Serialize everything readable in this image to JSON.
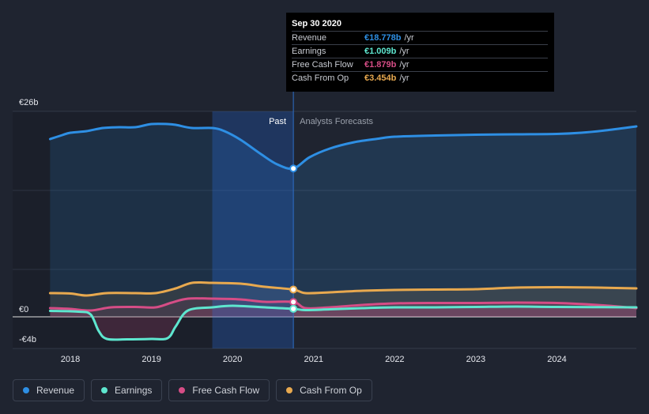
{
  "tooltip": {
    "date": "Sep 30 2020",
    "rows": [
      {
        "label": "Revenue",
        "value": "€18.778b",
        "unit": "/yr",
        "color": "#2e8fe4"
      },
      {
        "label": "Earnings",
        "value": "€1.009b",
        "unit": "/yr",
        "color": "#5ee6cf"
      },
      {
        "label": "Free Cash Flow",
        "value": "€1.879b",
        "unit": "/yr",
        "color": "#d64d86"
      },
      {
        "label": "Cash From Op",
        "value": "€3.454b",
        "unit": "/yr",
        "color": "#e8a94f"
      }
    ]
  },
  "legend": [
    {
      "label": "Revenue",
      "color": "#2e8fe4"
    },
    {
      "label": "Earnings",
      "color": "#5ee6cf"
    },
    {
      "label": "Free Cash Flow",
      "color": "#d64d86"
    },
    {
      "label": "Cash From Op",
      "color": "#e8a94f"
    }
  ],
  "chart_data": {
    "type": "line",
    "ylim": [
      -4,
      26
    ],
    "y_tick_labels": [
      {
        "value": 26,
        "label": "€26b"
      },
      {
        "value": 0,
        "label": "€0"
      },
      {
        "value": -4,
        "label": "-€4b"
      }
    ],
    "xlim": [
      2017.6,
      2024.98
    ],
    "x_ticks": [
      2018,
      2019,
      2020,
      2021,
      2022,
      2023,
      2024
    ],
    "x_tick_labels": [
      "2018",
      "2019",
      "2020",
      "2021",
      "2022",
      "2023",
      "2024"
    ],
    "divider_x": 2020.75,
    "shaded_past_start": 2019.75,
    "past_label": "Past",
    "forecast_label": "Analysts Forecasts",
    "series": [
      {
        "name": "Revenue",
        "color": "#2e8fe4",
        "points": [
          [
            2017.75,
            22.5
          ],
          [
            2017.9,
            23
          ],
          [
            2018.0,
            23.3
          ],
          [
            2018.2,
            23.5
          ],
          [
            2018.4,
            23.9
          ],
          [
            2018.6,
            24.0
          ],
          [
            2018.8,
            24.0
          ],
          [
            2019.0,
            24.4
          ],
          [
            2019.2,
            24.4
          ],
          [
            2019.3,
            24.3
          ],
          [
            2019.5,
            23.9
          ],
          [
            2019.75,
            23.9
          ],
          [
            2019.9,
            23.5
          ],
          [
            2020.1,
            22.4
          ],
          [
            2020.35,
            20.6
          ],
          [
            2020.55,
            19.3
          ],
          [
            2020.75,
            18.778
          ],
          [
            2020.95,
            20.2
          ],
          [
            2021.2,
            21.3
          ],
          [
            2021.5,
            22.1
          ],
          [
            2021.8,
            22.55
          ],
          [
            2022.0,
            22.8
          ],
          [
            2022.5,
            22.95
          ],
          [
            2023.0,
            23.05
          ],
          [
            2023.5,
            23.1
          ],
          [
            2024.0,
            23.15
          ],
          [
            2024.3,
            23.3
          ],
          [
            2024.6,
            23.6
          ],
          [
            2024.98,
            24.1
          ]
        ]
      },
      {
        "name": "Cash From Op",
        "color": "#e8a94f",
        "points": [
          [
            2017.75,
            3.0
          ],
          [
            2018.0,
            2.95
          ],
          [
            2018.2,
            2.7
          ],
          [
            2018.45,
            3.0
          ],
          [
            2018.8,
            3.0
          ],
          [
            2019.05,
            3.0
          ],
          [
            2019.3,
            3.6
          ],
          [
            2019.5,
            4.3
          ],
          [
            2019.75,
            4.3
          ],
          [
            2020.1,
            4.2
          ],
          [
            2020.4,
            3.8
          ],
          [
            2020.75,
            3.454
          ],
          [
            2020.9,
            3.0
          ],
          [
            2021.2,
            3.1
          ],
          [
            2021.6,
            3.3
          ],
          [
            2022.0,
            3.4
          ],
          [
            2022.5,
            3.45
          ],
          [
            2023.0,
            3.5
          ],
          [
            2023.5,
            3.7
          ],
          [
            2024.0,
            3.75
          ],
          [
            2024.5,
            3.7
          ],
          [
            2024.98,
            3.6
          ]
        ]
      },
      {
        "name": "Free Cash Flow",
        "color": "#d64d86",
        "points": [
          [
            2017.75,
            1.1
          ],
          [
            2018.0,
            1.0
          ],
          [
            2018.25,
            0.8
          ],
          [
            2018.5,
            1.2
          ],
          [
            2018.8,
            1.25
          ],
          [
            2019.05,
            1.2
          ],
          [
            2019.25,
            1.8
          ],
          [
            2019.45,
            2.3
          ],
          [
            2019.75,
            2.3
          ],
          [
            2020.1,
            2.2
          ],
          [
            2020.4,
            1.9
          ],
          [
            2020.75,
            1.879
          ],
          [
            2020.9,
            1.1
          ],
          [
            2021.2,
            1.2
          ],
          [
            2021.6,
            1.5
          ],
          [
            2022.0,
            1.7
          ],
          [
            2022.5,
            1.75
          ],
          [
            2023.0,
            1.75
          ],
          [
            2023.5,
            1.8
          ],
          [
            2024.0,
            1.75
          ],
          [
            2024.5,
            1.5
          ],
          [
            2024.98,
            1.1
          ]
        ]
      },
      {
        "name": "Earnings",
        "color": "#5ee6cf",
        "points": [
          [
            2017.75,
            0.75
          ],
          [
            2018.1,
            0.65
          ],
          [
            2018.25,
            0.3
          ],
          [
            2018.35,
            -1.8
          ],
          [
            2018.45,
            -2.8
          ],
          [
            2018.7,
            -2.85
          ],
          [
            2019.0,
            -2.8
          ],
          [
            2019.2,
            -2.7
          ],
          [
            2019.3,
            -1.2
          ],
          [
            2019.45,
            0.8
          ],
          [
            2019.75,
            1.2
          ],
          [
            2020.0,
            1.4
          ],
          [
            2020.4,
            1.2
          ],
          [
            2020.75,
            1.009
          ],
          [
            2020.9,
            0.85
          ],
          [
            2021.2,
            0.95
          ],
          [
            2021.6,
            1.1
          ],
          [
            2022.0,
            1.2
          ],
          [
            2022.5,
            1.2
          ],
          [
            2023.0,
            1.25
          ],
          [
            2023.5,
            1.3
          ],
          [
            2024.0,
            1.25
          ],
          [
            2024.98,
            1.2
          ]
        ]
      }
    ]
  }
}
